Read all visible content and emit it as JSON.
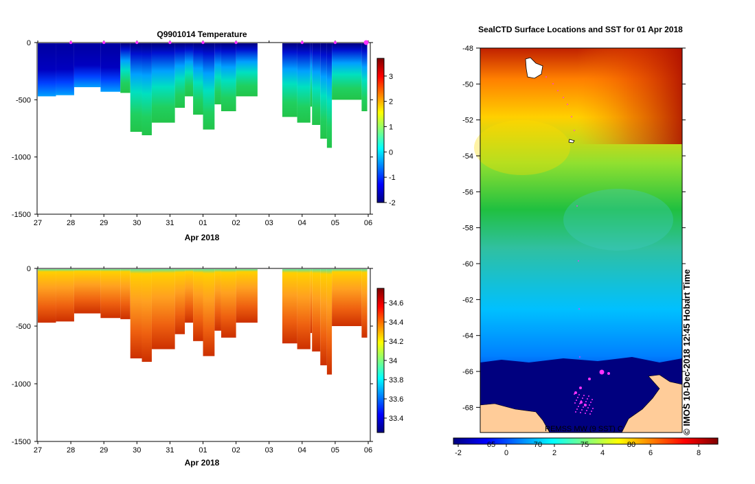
{
  "chart_data": [
    {
      "type": "heatmap",
      "title": "Q9901014  Temperature",
      "xlabel": "Apr 2018",
      "x_tick_labels": [
        "27",
        "28",
        "29",
        "30",
        "31",
        "01",
        "02",
        "03",
        "04",
        "05",
        "06"
      ],
      "y_tick_labels": [
        "0",
        "-500",
        "-1000",
        "-1500"
      ],
      "ylim": [
        -1500,
        0
      ],
      "colorbar": {
        "ticks": [
          "3",
          "2",
          "1",
          "0",
          "-1",
          "-2"
        ],
        "range": [
          -2,
          3.7
        ]
      },
      "profile_markers_days": [
        1,
        2,
        3,
        4,
        5,
        6,
        8,
        9
      ],
      "profile_depths_m": [
        [
          0,
          470
        ],
        [
          0.55,
          460
        ],
        [
          1.1,
          390
        ],
        [
          1.9,
          430
        ],
        [
          2.5,
          440
        ],
        [
          2.8,
          780
        ],
        [
          3.15,
          810
        ],
        [
          3.45,
          700
        ],
        [
          4.15,
          570
        ],
        [
          4.45,
          470
        ],
        [
          4.7,
          630
        ],
        [
          5.0,
          760
        ],
        [
          5.35,
          540
        ],
        [
          5.55,
          600
        ],
        [
          6.0,
          470
        ],
        [
          7.4,
          650
        ],
        [
          7.85,
          700
        ],
        [
          8.25,
          560
        ],
        [
          8.3,
          720
        ],
        [
          8.55,
          840
        ],
        [
          8.75,
          920
        ],
        [
          8.9,
          500
        ],
        [
          9.8,
          600
        ]
      ],
      "data_gap_days": [
        6.65,
        7.4
      ]
    },
    {
      "type": "heatmap",
      "title": "",
      "xlabel": "Apr 2018",
      "x_tick_labels": [
        "27",
        "28",
        "29",
        "30",
        "31",
        "01",
        "02",
        "03",
        "04",
        "05",
        "06"
      ],
      "y_tick_labels": [
        "0",
        "-500",
        "-1000",
        "-1500"
      ],
      "ylim": [
        -1500,
        0
      ],
      "colorbar": {
        "ticks": [
          "34.6",
          "34.4",
          "34.2",
          "34",
          "33.8",
          "33.6",
          "33.4"
        ],
        "range": [
          33.25,
          34.75
        ]
      }
    },
    {
      "type": "heatmap",
      "title": "SealCTD Surface Locations and SST for 01 Apr 2018",
      "ylabel": "",
      "y_tick_labels": [
        "-48",
        "-50",
        "-52",
        "-54",
        "-56",
        "-58",
        "-60",
        "-62",
        "-64",
        "-66",
        "-68"
      ],
      "ylim": [
        -69.4,
        -48
      ],
      "colorbar": {
        "ticks": [
          "-2",
          "0",
          "2",
          "4",
          "6",
          "8"
        ],
        "secondary_ticks": [
          "65",
          "70",
          "75",
          "80"
        ],
        "range": [
          -2.2,
          8.8
        ]
      },
      "annotation": "REMSS MW (9 SST) C",
      "side_text": "© IMOS 10-Dec-2018 12:45 Hobart Time"
    }
  ],
  "colors": {
    "jet": [
      "#00007f",
      "#0000ff",
      "#007fff",
      "#00ffff",
      "#7fff7f",
      "#ffff00",
      "#ff7f00",
      "#ff0000",
      "#7f0000"
    ],
    "land": "#ffcc99",
    "track": "#ff33ff",
    "background": "#ffffff"
  }
}
